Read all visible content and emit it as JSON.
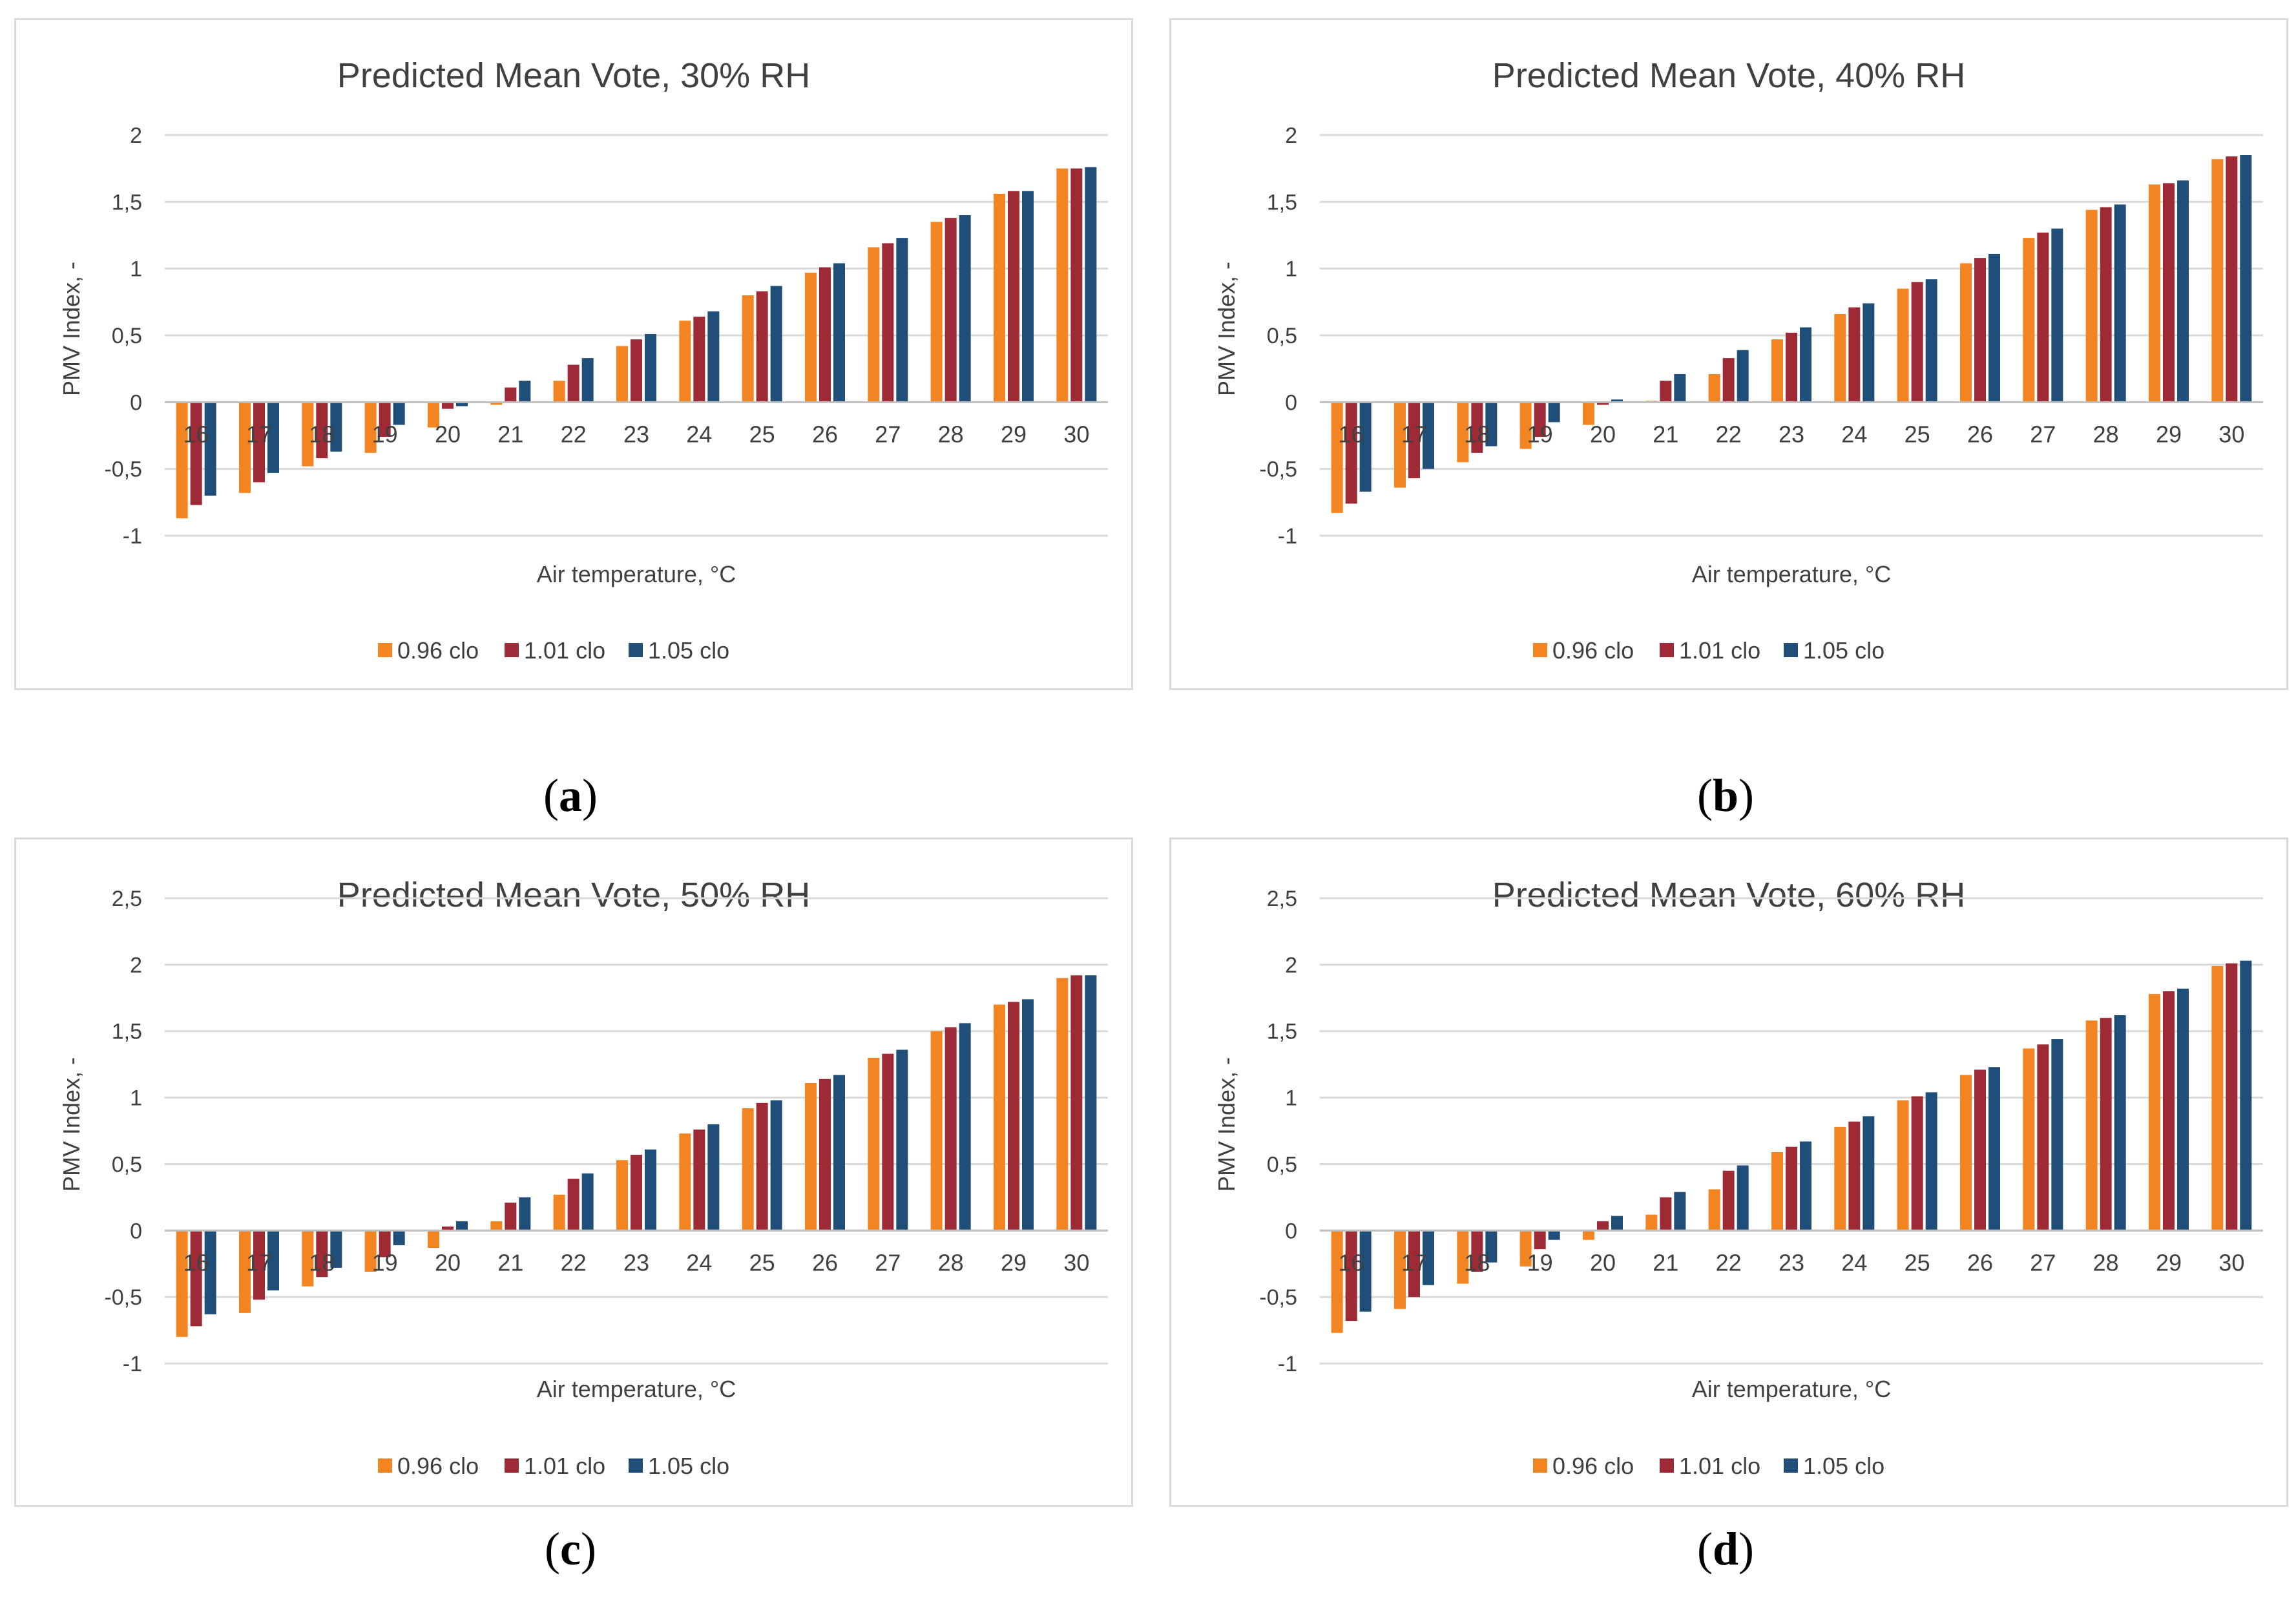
{
  "captions": [
    {
      "open": "(",
      "letter": "a",
      "close": ")"
    },
    {
      "open": "(",
      "letter": "b",
      "close": ")"
    },
    {
      "open": "(",
      "letter": "c",
      "close": ")"
    },
    {
      "open": "(",
      "letter": "d",
      "close": ")"
    }
  ],
  "colors": {
    "s1": "#f28522",
    "s2": "#9e2a36",
    "s3": "#1f4e79"
  },
  "chart_data": [
    {
      "type": "bar",
      "title": "Predicted Mean Vote, 30% RH",
      "xlabel": "Air temperature,  °C",
      "ylabel": "PMV Index, -",
      "ylim": [
        -1,
        2
      ],
      "ytick_values": [
        -1,
        -0.5,
        0,
        0.5,
        1,
        1.5,
        2
      ],
      "ytick_labels": [
        "-1",
        "-0,5",
        "0",
        "0,5",
        "1",
        "1,5",
        "2"
      ],
      "categories": [
        "16",
        "17",
        "18",
        "19",
        "20",
        "21",
        "22",
        "23",
        "24",
        "25",
        "26",
        "27",
        "28",
        "29",
        "30"
      ],
      "series": [
        {
          "name": "0.96 clo",
          "values": [
            -0.87,
            -0.68,
            -0.48,
            -0.38,
            -0.19,
            -0.02,
            0.16,
            0.42,
            0.61,
            0.8,
            0.97,
            1.16,
            1.35,
            1.56,
            1.75
          ]
        },
        {
          "name": "1.01 clo",
          "values": [
            -0.77,
            -0.6,
            -0.42,
            -0.26,
            -0.05,
            0.11,
            0.28,
            0.47,
            0.64,
            0.83,
            1.01,
            1.19,
            1.38,
            1.58,
            1.75
          ]
        },
        {
          "name": "1.05 clo",
          "values": [
            -0.7,
            -0.53,
            -0.37,
            -0.17,
            -0.03,
            0.16,
            0.33,
            0.51,
            0.68,
            0.87,
            1.04,
            1.23,
            1.4,
            1.58,
            1.76
          ]
        }
      ],
      "legend": "bottom"
    },
    {
      "type": "bar",
      "title": "Predicted Mean Vote, 40% RH",
      "xlabel": "Air temperature,  °C",
      "ylabel": "PMV Index, -",
      "ylim": [
        -1,
        2
      ],
      "ytick_values": [
        -1,
        -0.5,
        0,
        0.5,
        1,
        1.5,
        2
      ],
      "ytick_labels": [
        "-1",
        "-0,5",
        "0",
        "0,5",
        "1",
        "1,5",
        "2"
      ],
      "categories": [
        "16",
        "17",
        "18",
        "19",
        "20",
        "21",
        "22",
        "23",
        "24",
        "25",
        "26",
        "27",
        "28",
        "29",
        "30"
      ],
      "series": [
        {
          "name": "0.96 clo",
          "values": [
            -0.83,
            -0.64,
            -0.45,
            -0.35,
            -0.17,
            0.01,
            0.21,
            0.47,
            0.66,
            0.85,
            1.04,
            1.23,
            1.44,
            1.63,
            1.82
          ]
        },
        {
          "name": "1.01 clo",
          "values": [
            -0.76,
            -0.57,
            -0.38,
            -0.26,
            -0.02,
            0.16,
            0.33,
            0.52,
            0.71,
            0.9,
            1.08,
            1.27,
            1.46,
            1.64,
            1.84
          ]
        },
        {
          "name": "1.05 clo",
          "values": [
            -0.67,
            -0.5,
            -0.33,
            -0.15,
            0.02,
            0.21,
            0.39,
            0.56,
            0.74,
            0.92,
            1.11,
            1.3,
            1.48,
            1.66,
            1.85
          ]
        }
      ],
      "legend": "bottom"
    },
    {
      "type": "bar",
      "title": "Predicted Mean Vote, 50% RH",
      "xlabel": "Air temperature,  °C",
      "ylabel": "PMV Index, -",
      "ylim": [
        -1,
        2.5
      ],
      "ytick_values": [
        -1,
        -0.5,
        0,
        0.5,
        1,
        1.5,
        2,
        2.5
      ],
      "ytick_labels": [
        "-1",
        "-0,5",
        "0",
        "0,5",
        "1",
        "1,5",
        "2",
        "2,5"
      ],
      "categories": [
        "16",
        "17",
        "18",
        "19",
        "20",
        "21",
        "22",
        "23",
        "24",
        "25",
        "26",
        "27",
        "28",
        "29",
        "30"
      ],
      "series": [
        {
          "name": "0.96 clo",
          "values": [
            -0.8,
            -0.62,
            -0.42,
            -0.31,
            -0.13,
            0.07,
            0.27,
            0.53,
            0.73,
            0.92,
            1.11,
            1.3,
            1.5,
            1.7,
            1.9
          ]
        },
        {
          "name": "1.01 clo",
          "values": [
            -0.72,
            -0.52,
            -0.35,
            -0.2,
            0.03,
            0.21,
            0.39,
            0.57,
            0.76,
            0.96,
            1.14,
            1.33,
            1.53,
            1.72,
            1.92
          ]
        },
        {
          "name": "1.05 clo",
          "values": [
            -0.63,
            -0.45,
            -0.28,
            -0.11,
            0.07,
            0.25,
            0.43,
            0.61,
            0.8,
            0.98,
            1.17,
            1.36,
            1.56,
            1.74,
            1.92
          ]
        }
      ],
      "legend": "bottom"
    },
    {
      "type": "bar",
      "title": "Predicted Mean Vote, 60% RH",
      "xlabel": "Air temperature,  °C",
      "ylabel": "PMV Index, -",
      "ylim": [
        -1,
        2.5
      ],
      "ytick_values": [
        -1,
        -0.5,
        0,
        0.5,
        1,
        1.5,
        2,
        2.5
      ],
      "ytick_labels": [
        "-1",
        "-0,5",
        "0",
        "0,5",
        "1",
        "1,5",
        "2",
        "2,5"
      ],
      "categories": [
        "16",
        "17",
        "18",
        "19",
        "20",
        "21",
        "22",
        "23",
        "24",
        "25",
        "26",
        "27",
        "28",
        "29",
        "30"
      ],
      "series": [
        {
          "name": "0.96 clo",
          "values": [
            -0.77,
            -0.59,
            -0.4,
            -0.27,
            -0.07,
            0.12,
            0.31,
            0.59,
            0.78,
            0.98,
            1.17,
            1.37,
            1.58,
            1.78,
            1.99
          ]
        },
        {
          "name": "1.01 clo",
          "values": [
            -0.68,
            -0.5,
            -0.31,
            -0.14,
            0.07,
            0.25,
            0.45,
            0.63,
            0.82,
            1.01,
            1.21,
            1.4,
            1.6,
            1.8,
            2.01
          ]
        },
        {
          "name": "1.05 clo",
          "values": [
            -0.61,
            -0.41,
            -0.24,
            -0.07,
            0.11,
            0.29,
            0.49,
            0.67,
            0.86,
            1.04,
            1.23,
            1.44,
            1.62,
            1.82,
            2.03
          ]
        }
      ],
      "legend": "bottom"
    }
  ]
}
